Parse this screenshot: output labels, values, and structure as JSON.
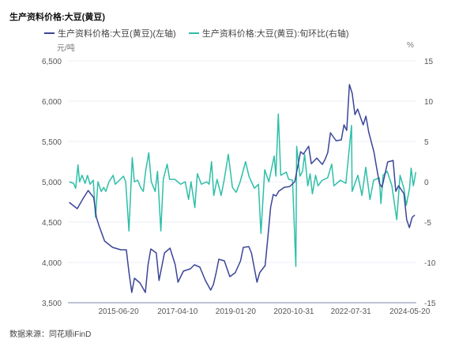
{
  "chart_data": {
    "type": "line",
    "title": "生产资料价格:大豆(黄豆)",
    "left_unit": "元/吨",
    "right_unit": "%",
    "source": "数据来源：同花顺iFinD",
    "x_ticks": [
      "2015-06-20",
      "2017-04-10",
      "2019-01-20",
      "2020-10-31",
      "2022-07-31",
      "2024-05-20"
    ],
    "xlim": [
      "2013-12-01",
      "2024-08-01"
    ],
    "y_left": {
      "range": [
        3500,
        6500
      ],
      "ticks": [
        "6,500",
        "6,000",
        "5,500",
        "5,000",
        "4,500",
        "4,000",
        "3,500"
      ]
    },
    "y_right": {
      "range": [
        -15,
        15
      ],
      "ticks": [
        "15",
        "10",
        "5",
        "0",
        "-5",
        "-10",
        "-15"
      ]
    },
    "grid": true,
    "legend_placement": "top",
    "series": [
      {
        "name": "生产资料价格:大豆(黄豆)(左轴)",
        "axis": "left",
        "color": "#3b4597",
        "points": [
          [
            "2013-12-15",
            4745
          ],
          [
            "2014-03-15",
            4667
          ],
          [
            "2014-05-15",
            4784
          ],
          [
            "2014-07-15",
            4892
          ],
          [
            "2014-09-15",
            4804
          ],
          [
            "2014-10-15",
            4559
          ],
          [
            "2014-11-15",
            4451
          ],
          [
            "2015-01-15",
            4265
          ],
          [
            "2015-04-15",
            4186
          ],
          [
            "2015-07-15",
            4157
          ],
          [
            "2015-09-15",
            4157
          ],
          [
            "2015-10-15",
            3873
          ],
          [
            "2015-11-15",
            3627
          ],
          [
            "2015-12-15",
            3804
          ],
          [
            "2016-02-15",
            3745
          ],
          [
            "2016-04-15",
            3627
          ],
          [
            "2016-05-15",
            3971
          ],
          [
            "2016-06-15",
            4167
          ],
          [
            "2016-08-15",
            4118
          ],
          [
            "2016-09-15",
            3775
          ],
          [
            "2016-11-15",
            4118
          ],
          [
            "2017-01-15",
            4177
          ],
          [
            "2017-03-15",
            3971
          ],
          [
            "2017-04-15",
            3755
          ],
          [
            "2017-06-15",
            3892
          ],
          [
            "2017-09-01",
            3922
          ],
          [
            "2017-10-15",
            3971
          ],
          [
            "2017-12-15",
            3941
          ],
          [
            "2018-02-15",
            3775
          ],
          [
            "2018-04-15",
            3657
          ],
          [
            "2018-05-15",
            3725
          ],
          [
            "2018-06-15",
            3873
          ],
          [
            "2018-07-15",
            4039
          ],
          [
            "2018-09-15",
            4020
          ],
          [
            "2018-11-15",
            3824
          ],
          [
            "2019-01-15",
            3873
          ],
          [
            "2019-03-15",
            4020
          ],
          [
            "2019-04-15",
            4186
          ],
          [
            "2019-06-15",
            4196
          ],
          [
            "2019-07-15",
            4118
          ],
          [
            "2019-09-15",
            3755
          ],
          [
            "2019-10-15",
            3873
          ],
          [
            "2019-12-15",
            3961
          ],
          [
            "2020-01-15",
            4314
          ],
          [
            "2020-02-15",
            4686
          ],
          [
            "2020-03-15",
            4843
          ],
          [
            "2020-04-15",
            4824
          ],
          [
            "2020-05-15",
            4882
          ],
          [
            "2020-07-15",
            4931
          ],
          [
            "2020-09-15",
            4941
          ],
          [
            "2020-11-10",
            5000
          ],
          [
            "2020-12-15",
            5196
          ],
          [
            "2021-01-15",
            5373
          ],
          [
            "2021-02-15",
            5343
          ],
          [
            "2021-04-15",
            5441
          ],
          [
            "2021-05-15",
            5225
          ],
          [
            "2021-07-15",
            5294
          ],
          [
            "2021-09-15",
            5216
          ],
          [
            "2021-10-15",
            5275
          ],
          [
            "2021-11-15",
            5363
          ],
          [
            "2021-12-15",
            5608
          ],
          [
            "2022-02-15",
            5510
          ],
          [
            "2022-04-15",
            5520
          ],
          [
            "2022-05-15",
            5706
          ],
          [
            "2022-06-15",
            5637
          ],
          [
            "2022-07-15",
            6206
          ],
          [
            "2022-08-15",
            6098
          ],
          [
            "2022-09-15",
            5833
          ],
          [
            "2022-10-15",
            5902
          ],
          [
            "2022-12-15",
            5706
          ],
          [
            "2023-01-15",
            5814
          ],
          [
            "2023-02-15",
            5618
          ],
          [
            "2023-04-15",
            5373
          ],
          [
            "2023-05-15",
            5176
          ],
          [
            "2023-06-15",
            4980
          ],
          [
            "2023-07-15",
            4931
          ],
          [
            "2023-09-15",
            5245
          ],
          [
            "2023-11-15",
            5265
          ],
          [
            "2023-12-15",
            4882
          ],
          [
            "2024-01-15",
            4951
          ],
          [
            "2024-03-15",
            4853
          ],
          [
            "2024-04-15",
            4529
          ],
          [
            "2024-05-15",
            4431
          ],
          [
            "2024-06-15",
            4559
          ],
          [
            "2024-07-15",
            4588
          ]
        ]
      },
      {
        "name": "生产资料价格:大豆(黄豆):旬环比(右轴)",
        "axis": "right",
        "color": "#2ebfa8",
        "points": [
          [
            "2013-12-17",
            0
          ],
          [
            "2014-02-02",
            -0.2
          ],
          [
            "2014-02-26",
            -0.8
          ],
          [
            "2014-03-23",
            2.1
          ],
          [
            "2014-04-10",
            0
          ],
          [
            "2014-05-08",
            0.8
          ],
          [
            "2014-06-11",
            -0.2
          ],
          [
            "2014-07-08",
            0.8
          ],
          [
            "2014-08-05",
            -0.3
          ],
          [
            "2014-09-11",
            0.2
          ],
          [
            "2014-10-05",
            -4.4
          ],
          [
            "2014-11-02",
            0
          ],
          [
            "2014-12-08",
            -1.2
          ],
          [
            "2015-01-05",
            -0.7
          ],
          [
            "2015-01-29",
            -1.2
          ],
          [
            "2015-03-05",
            0
          ],
          [
            "2015-04-20",
            0.8
          ],
          [
            "2015-05-14",
            -0.3
          ],
          [
            "2015-06-29",
            0.2
          ],
          [
            "2015-08-14",
            0.7
          ],
          [
            "2015-09-08",
            0
          ],
          [
            "2015-10-14",
            -6.1
          ],
          [
            "2015-11-20",
            3.0
          ],
          [
            "2015-12-14",
            0
          ],
          [
            "2016-01-20",
            0.2
          ],
          [
            "2016-02-26",
            -0.8
          ],
          [
            "2016-03-23",
            -1.2
          ],
          [
            "2016-04-17",
            1.3
          ],
          [
            "2016-05-23",
            3.6
          ],
          [
            "2016-06-20",
            0
          ],
          [
            "2016-08-02",
            -1.2
          ],
          [
            "2016-08-29",
            1.3
          ],
          [
            "2016-10-05",
            -6.1
          ],
          [
            "2016-11-01",
            0.3
          ],
          [
            "2016-12-15",
            2.2
          ],
          [
            "2017-01-11",
            0.3
          ],
          [
            "2017-03-11",
            0.3
          ],
          [
            "2017-05-14",
            -0.3
          ],
          [
            "2017-07-05",
            0
          ],
          [
            "2017-08-11",
            -2.2
          ],
          [
            "2017-09-07",
            0
          ],
          [
            "2017-10-20",
            -3.2
          ],
          [
            "2017-11-17",
            1.0
          ],
          [
            "2018-01-01",
            -0.3
          ],
          [
            "2018-03-02",
            0
          ],
          [
            "2018-03-29",
            -0.3
          ],
          [
            "2018-04-25",
            2.5
          ],
          [
            "2018-05-20",
            -1.7
          ],
          [
            "2018-06-26",
            0.3
          ],
          [
            "2018-08-10",
            -1.7
          ],
          [
            "2018-09-14",
            0.3
          ],
          [
            "2018-10-29",
            3.4
          ],
          [
            "2018-12-14",
            -0.7
          ],
          [
            "2019-01-26",
            -1.3
          ],
          [
            "2019-03-11",
            0
          ],
          [
            "2019-05-11",
            2.5
          ],
          [
            "2019-06-17",
            0.7
          ],
          [
            "2019-08-17",
            -0.8
          ],
          [
            "2019-10-02",
            -0.3
          ],
          [
            "2019-10-29",
            -6.4
          ],
          [
            "2019-12-11",
            1.5
          ],
          [
            "2020-01-26",
            0
          ],
          [
            "2020-03-26",
            3.2
          ],
          [
            "2020-04-13",
            0.7
          ],
          [
            "2020-05-11",
            8.4
          ],
          [
            "2020-06-07",
            0.8
          ],
          [
            "2020-08-07",
            1.2
          ],
          [
            "2020-09-04",
            0.3
          ],
          [
            "2020-10-17",
            0.2
          ],
          [
            "2020-11-23",
            -10.5
          ],
          [
            "2020-12-02",
            4.4
          ],
          [
            "2021-01-08",
            0.7
          ],
          [
            "2021-02-05",
            1.3
          ],
          [
            "2021-03-01",
            3.4
          ],
          [
            "2021-04-05",
            -0.5
          ],
          [
            "2021-05-02",
            1.0
          ],
          [
            "2021-05-26",
            -1.5
          ],
          [
            "2021-07-02",
            0.8
          ],
          [
            "2021-07-29",
            -0.5
          ],
          [
            "2021-09-14",
            0.2
          ],
          [
            "2021-11-14",
            0.5
          ],
          [
            "2021-12-29",
            2.2
          ],
          [
            "2022-01-23",
            -0.5
          ],
          [
            "2022-04-05",
            0.2
          ],
          [
            "2022-06-05",
            -0.2
          ],
          [
            "2022-06-23",
            1.8
          ],
          [
            "2022-08-08",
            7.0
          ],
          [
            "2022-08-14",
            -1.2
          ],
          [
            "2022-10-17",
            0.8
          ],
          [
            "2022-12-02",
            -1.7
          ],
          [
            "2023-01-14",
            1.8
          ],
          [
            "2023-03-01",
            -2.2
          ],
          [
            "2023-04-11",
            0.2
          ],
          [
            "2023-06-14",
            0.5
          ],
          [
            "2023-07-02",
            -2.7
          ],
          [
            "2023-07-26",
            0.8
          ],
          [
            "2023-09-10",
            1.3
          ],
          [
            "2023-11-02",
            -0.5
          ],
          [
            "2023-12-26",
            -4.7
          ],
          [
            "2024-02-01",
            0.8
          ],
          [
            "2024-03-14",
            -0.8
          ],
          [
            "2024-04-11",
            -2.9
          ],
          [
            "2024-05-17",
            -0.8
          ],
          [
            "2024-06-04",
            1.7
          ],
          [
            "2024-06-29",
            -0.5
          ],
          [
            "2024-07-26",
            1.2
          ]
        ]
      }
    ]
  }
}
